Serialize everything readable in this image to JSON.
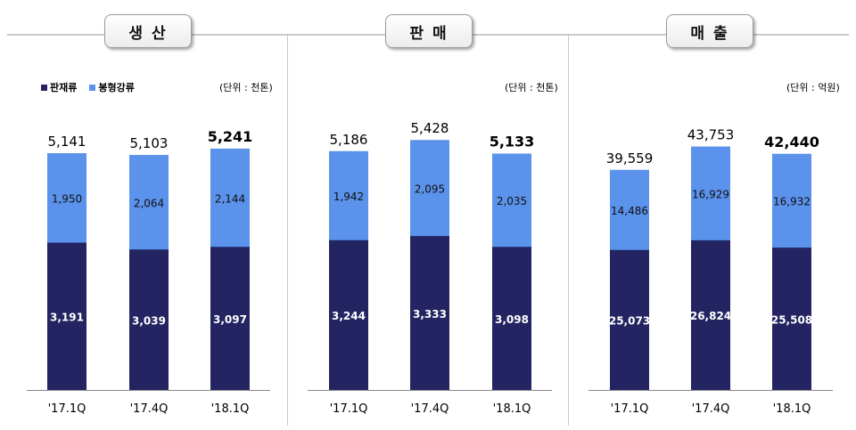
{
  "panels": [
    {
      "title": "생 산",
      "unit": "(단위 : 천톤)"
    },
    {
      "title": "판 매",
      "unit": "(단위 : 천톤)"
    },
    {
      "title": "매 출",
      "unit": "(단위 : 억원)"
    }
  ],
  "legend": {
    "items": [
      "판재류",
      "봉형강류"
    ]
  },
  "colors": {
    "bottom": "#232461",
    "top": "#5b92eb"
  },
  "chart_data": [
    {
      "type": "bar",
      "title": "생 산",
      "categories": [
        "'17.1Q",
        "'17.4Q",
        "'18.1Q"
      ],
      "series": [
        {
          "name": "판재류",
          "values": [
            3191,
            3039,
            3097
          ]
        },
        {
          "name": "봉형강류",
          "values": [
            1950,
            2064,
            2144
          ]
        }
      ],
      "totals": [
        5141,
        5103,
        5241
      ],
      "ylim": [
        0,
        5800
      ],
      "unit": "(단위 : 천톤)"
    },
    {
      "type": "bar",
      "title": "판 매",
      "categories": [
        "'17.1Q",
        "'17.4Q",
        "'18.1Q"
      ],
      "series": [
        {
          "name": "판재류",
          "values": [
            3244,
            3333,
            3098
          ]
        },
        {
          "name": "봉형강류",
          "values": [
            1942,
            2095,
            2035
          ]
        }
      ],
      "totals": [
        5186,
        5428,
        5133
      ],
      "ylim": [
        0,
        5800
      ],
      "unit": "(단위 : 천톤)"
    },
    {
      "type": "bar",
      "title": "매 출",
      "categories": [
        "'17.1Q",
        "'17.4Q",
        "'18.1Q"
      ],
      "series": [
        {
          "name": "판재류",
          "values": [
            25073,
            26824,
            25508
          ]
        },
        {
          "name": "봉형강류",
          "values": [
            14486,
            16929,
            16932
          ]
        }
      ],
      "totals": [
        39559,
        43753,
        42440
      ],
      "ylim": [
        0,
        48000
      ],
      "unit": "(단위 : 억원)"
    }
  ]
}
